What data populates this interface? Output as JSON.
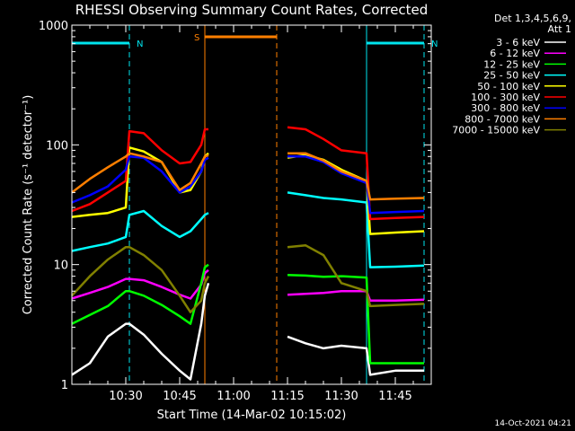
{
  "title": "RHESSI Observing Summary Count Rates, Corrected",
  "legend": {
    "header_1": "Det 1,3,4,5,6,9,",
    "header_2": "Att 1"
  },
  "footer_date": "14-Oct-2021 04:21",
  "colors": {
    "background": "#000000",
    "axes": "#ffffff",
    "cyan_marker": "#00e5ee",
    "orange_marker": "#ff7f00"
  },
  "chart_data": {
    "type": "line",
    "title": "RHESSI Observing Summary Count Rates, Corrected",
    "xlabel": "Start Time (14-Mar-02 10:15:02)",
    "ylabel": "Corrected Count Rate (s⁻¹ detector⁻¹)",
    "y_scale": "log",
    "ylim": [
      1,
      1000
    ],
    "xlim": [
      "10:15",
      "11:55"
    ],
    "x_ticks": [
      "10:30",
      "10:45",
      "11:00",
      "11:15",
      "11:30",
      "11:45"
    ],
    "y_ticks": [
      "1",
      "10",
      "100",
      "1000"
    ],
    "legend_position": "top-right",
    "gaps": [
      [
        "10:53",
        "11:13"
      ]
    ],
    "markers": [
      {
        "label": "N",
        "start": "10:15",
        "end": "10:31",
        "color": "#00e5ee"
      },
      {
        "label": "N",
        "start": "11:37",
        "end": "11:53",
        "color": "#00e5ee"
      },
      {
        "label": "S",
        "start": "10:52",
        "end": "11:12",
        "color": "#ff7f00"
      }
    ],
    "x": [
      "10:15",
      "10:20",
      "10:25",
      "10:30",
      "10:31",
      "10:35",
      "10:40",
      "10:45",
      "10:48",
      "10:51",
      "10:52",
      "10:53",
      "11:13",
      "11:15",
      "11:20",
      "11:25",
      "11:30",
      "11:37",
      "11:38",
      "11:45",
      "11:53"
    ],
    "series": [
      {
        "name": "3 - 6 keV",
        "color": "#ffffff",
        "values": [
          1.2,
          1.5,
          2.5,
          3.2,
          3.2,
          2.6,
          1.8,
          1.3,
          1.1,
          3.2,
          5.5,
          7,
          null,
          2.5,
          2.2,
          2.0,
          2.1,
          2.0,
          1.2,
          1.3,
          1.3
        ]
      },
      {
        "name": "6 - 12 keV",
        "color": "#ff00ff",
        "values": [
          5.2,
          5.8,
          6.5,
          7.6,
          7.6,
          7.4,
          6.5,
          5.6,
          5.2,
          6.8,
          8.5,
          9,
          null,
          5.6,
          5.7,
          5.8,
          6.0,
          6.0,
          5.0,
          5.0,
          5.1
        ]
      },
      {
        "name": "12 - 25 keV",
        "color": "#00ff00",
        "values": [
          3.2,
          3.8,
          4.5,
          6.0,
          6.0,
          5.5,
          4.6,
          3.7,
          3.2,
          7.0,
          9.5,
          10,
          null,
          8.2,
          8.1,
          7.9,
          8.0,
          7.8,
          1.5,
          1.5,
          1.5
        ]
      },
      {
        "name": "25 - 50 keV",
        "color": "#00ffff",
        "values": [
          13,
          14,
          15,
          17,
          26,
          28,
          21,
          17,
          19,
          24,
          26,
          27,
          null,
          40,
          38,
          36,
          35,
          33,
          9.5,
          9.6,
          9.8
        ]
      },
      {
        "name": "50 - 100 keV",
        "color": "#ffff00",
        "values": [
          25,
          26,
          27,
          30,
          95,
          88,
          72,
          40,
          42,
          60,
          80,
          85,
          null,
          78,
          82,
          75,
          62,
          50,
          18,
          18.5,
          19
        ]
      },
      {
        "name": "100 - 300 keV",
        "color": "#ff0000",
        "values": [
          28,
          32,
          40,
          50,
          130,
          125,
          90,
          70,
          72,
          100,
          135,
          135,
          null,
          140,
          135,
          112,
          90,
          85,
          24,
          24.5,
          25
        ]
      },
      {
        "name": "300 - 800 keV",
        "color": "#0000ff",
        "values": [
          33,
          38,
          45,
          62,
          80,
          78,
          60,
          40,
          45,
          60,
          75,
          78,
          null,
          80,
          80,
          72,
          58,
          48,
          27,
          27.5,
          28
        ]
      },
      {
        "name": "800 - 7000 keV",
        "color": "#ff7f00",
        "values": [
          40,
          52,
          65,
          80,
          85,
          80,
          72,
          42,
          48,
          70,
          80,
          82,
          null,
          85,
          85,
          74,
          60,
          50,
          35,
          35.5,
          36
        ]
      },
      {
        "name": "7000 - 15000 keV",
        "color": "#808000",
        "values": [
          5.5,
          8,
          11,
          14,
          14,
          12,
          9,
          5.5,
          4,
          5,
          7,
          8,
          null,
          14,
          14.5,
          12,
          7,
          6,
          4.5,
          4.6,
          4.7
        ]
      }
    ]
  }
}
